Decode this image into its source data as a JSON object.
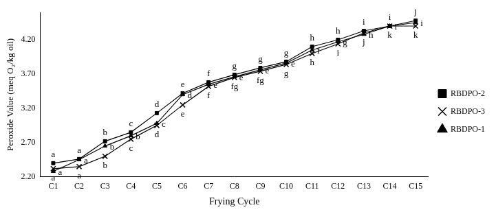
{
  "chart_data": {
    "type": "line",
    "x_label": "Frying Cycle",
    "y_label": "Peroxide Value (meq O₂/kg oil)",
    "categories": [
      "C1",
      "C2",
      "C3",
      "C4",
      "C5",
      "C6",
      "C7",
      "C8",
      "C9",
      "C10",
      "C11",
      "C12",
      "C13",
      "C14",
      "C15"
    ],
    "series": [
      {
        "name": "RBDPO-2",
        "color": "#000000",
        "marker": "square",
        "values": [
          2.4,
          2.46,
          2.72,
          2.85,
          3.13,
          3.42,
          3.58,
          3.69,
          3.79,
          3.88,
          4.1,
          4.2,
          4.33,
          4.4,
          4.48
        ],
        "annotations": [
          "a",
          "a",
          "b",
          "c",
          "d",
          "e",
          "f",
          "g",
          "g",
          "g",
          "h",
          "h",
          "i",
          "i",
          "j"
        ]
      },
      {
        "name": "RBDPO-3",
        "color": "#000000",
        "marker": "x",
        "values": [
          2.32,
          2.35,
          2.5,
          2.75,
          2.95,
          3.25,
          3.52,
          3.65,
          3.74,
          3.84,
          4.0,
          4.14,
          4.3,
          4.4,
          4.4
        ],
        "annotations": [
          "a",
          "a",
          "b",
          "c",
          "d",
          "e",
          "f",
          "fg",
          "fg",
          "g",
          "h",
          "i",
          "j",
          "k",
          "k"
        ]
      },
      {
        "name": "RBDPO-1",
        "color": "#000000",
        "marker": "triangle",
        "values": [
          2.28,
          2.45,
          2.65,
          2.8,
          2.98,
          3.4,
          3.55,
          3.66,
          3.76,
          3.86,
          4.05,
          4.17,
          4.28,
          4.4,
          4.45
        ],
        "annotations": [
          "a",
          "a",
          "b",
          "b",
          "c",
          "d",
          "e",
          "e",
          "e",
          "e",
          "f",
          "g",
          "h",
          "i",
          "i"
        ]
      }
    ],
    "ylim": [
      2.2,
      4.6
    ],
    "yticks": [
      {
        "value": 2.2,
        "label": "2.20"
      },
      {
        "value": 2.7,
        "label": "2.70"
      },
      {
        "value": 3.2,
        "label": "3.20"
      },
      {
        "value": 3.7,
        "label": "3.70"
      },
      {
        "value": 4.2,
        "label": "4.20"
      }
    ],
    "grid": false,
    "legend": "right"
  }
}
